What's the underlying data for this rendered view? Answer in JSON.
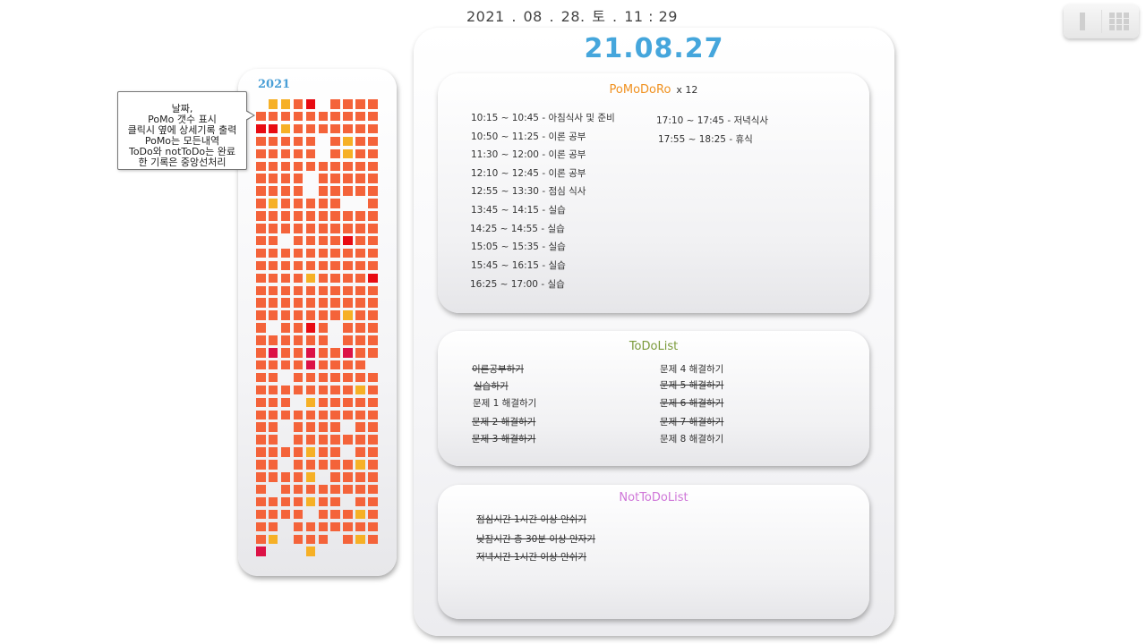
{
  "clock": {
    "year": "2021",
    "sep1": ".",
    "month": "08",
    "sep2": ".",
    "day": "28.",
    "weekday": "토",
    "sep3": ".",
    "time": "11 : 29"
  },
  "calendar": {
    "year": "2021",
    "legend_colors": {
      "orange": "#f4633a",
      "gold": "#f6b026",
      "red": "#e80b12",
      "crimson": "#dc1246",
      "pale": "#f7e2dc"
    }
  },
  "tooltip": {
    "lines": [
      "날짜,",
      "PoMo 갯수 표시",
      "클릭시 옆에 상세기록 출력",
      "PoMo는 모든내역",
      "ToDo와 notToDo는  완료",
      "한 기록은 중앙선처리"
    ]
  },
  "detail": {
    "date": "21.08.27",
    "pomodoro": {
      "title": "PoMoDoRo",
      "count": "x 12",
      "entries": [
        "10:15 ~ 10:45 - 아침식사 및 준비",
        "10:50 ~ 11:25 - 이론 공부",
        "11:30 ~ 12:00 - 이론 공부",
        "12:10 ~ 12:45 - 이론 공부",
        "12:55 ~ 13:30 - 점심 식사",
        "13:45 ~ 14:15 - 실습",
        "14:25 ~ 14:55 - 실습",
        "15:05 ~ 15:35 - 실습",
        "15:45 ~ 16:15 - 실습",
        "16:25 ~ 17:00 - 실습",
        "17:10 ~ 17:45 - 저녁식사",
        "17:55 ~ 18:25 - 휴식"
      ]
    },
    "todo": {
      "title": "ToDoList",
      "items": [
        {
          "text": "이론공부하기",
          "done": true
        },
        {
          "text": "실습하기",
          "done": true
        },
        {
          "text": "문제 1 해결하기",
          "done": false
        },
        {
          "text": "문제 2 해결하기",
          "done": true
        },
        {
          "text": "문제 3 해결하기",
          "done": true
        },
        {
          "text": "문제 4 해결하기",
          "done": false
        },
        {
          "text": "문제 5 해결하기",
          "done": true
        },
        {
          "text": "문제 6 해결하기",
          "done": true
        },
        {
          "text": "문제 7 해결하기",
          "done": true
        },
        {
          "text": "문제 8 해결하기",
          "done": false
        }
      ]
    },
    "nottodo": {
      "title": "NotToDoList",
      "items": [
        {
          "text": "점심시간 1시간 이상 안쉬기",
          "done": true
        },
        {
          "text": "낮잠시간 총 30분 이상 안자기",
          "done": true
        },
        {
          "text": "저녁시간 1시간 이상 안쉬기",
          "done": true
        }
      ]
    }
  }
}
